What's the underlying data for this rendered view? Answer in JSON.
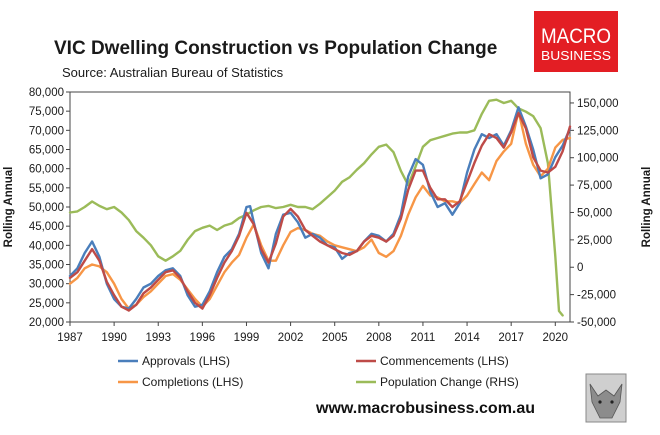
{
  "title": "VIC Dwelling Construction vs Population Change",
  "subtitle": "Source: Australian Bureau of Statistics",
  "logo": {
    "line1": "MACRO",
    "line2": "BUSINESS",
    "color": "#e31e24"
  },
  "website": "www.macrobusiness.com.au",
  "chart_data": {
    "type": "line",
    "title": "VIC Dwelling Construction vs Population Change",
    "ylabel_left": "Rolling Annual",
    "ylabel_right": "Rolling Annual",
    "xlim": [
      1987,
      2021
    ],
    "ylim_left": [
      20000,
      80000
    ],
    "ylim_right": [
      -50000,
      160000
    ],
    "x_ticks": [
      "1987",
      "1990",
      "1993",
      "1996",
      "1999",
      "2002",
      "2005",
      "2008",
      "2011",
      "2014",
      "2017",
      "2020"
    ],
    "y_ticks_left": [
      "20,000",
      "25,000",
      "30,000",
      "35,000",
      "40,000",
      "45,000",
      "50,000",
      "55,000",
      "60,000",
      "65,000",
      "70,000",
      "75,000",
      "80,000"
    ],
    "y_ticks_right": [
      "-50,000",
      "-25,000",
      "0",
      "25,000",
      "50,000",
      "75,000",
      "100,000",
      "125,000",
      "150,000"
    ],
    "legend": "bottom",
    "series": [
      {
        "name": "Approvals (LHS)",
        "axis": "left",
        "color": "#4a7ebb",
        "points": [
          [
            1987,
            32000
          ],
          [
            1987.5,
            34000
          ],
          [
            1988,
            38000
          ],
          [
            1988.5,
            41000
          ],
          [
            1989,
            37000
          ],
          [
            1989.5,
            30000
          ],
          [
            1990,
            26000
          ],
          [
            1990.5,
            24000
          ],
          [
            1991,
            23500
          ],
          [
            1991.5,
            26000
          ],
          [
            1992,
            29000
          ],
          [
            1992.5,
            30000
          ],
          [
            1993,
            32000
          ],
          [
            1993.5,
            33500
          ],
          [
            1994,
            34000
          ],
          [
            1994.5,
            32000
          ],
          [
            1995,
            27000
          ],
          [
            1995.5,
            24000
          ],
          [
            1996,
            24500
          ],
          [
            1996.5,
            28000
          ],
          [
            1997,
            33000
          ],
          [
            1997.5,
            37000
          ],
          [
            1998,
            39000
          ],
          [
            1998.5,
            43000
          ],
          [
            1999,
            50000
          ],
          [
            1999.25,
            50200
          ],
          [
            1999.5,
            46000
          ],
          [
            2000,
            38000
          ],
          [
            2000.5,
            34000
          ],
          [
            2001,
            43000
          ],
          [
            2001.5,
            48000
          ],
          [
            2002,
            48500
          ],
          [
            2002.5,
            46000
          ],
          [
            2003,
            42000
          ],
          [
            2003.5,
            43000
          ],
          [
            2004,
            42000
          ],
          [
            2004.5,
            40000
          ],
          [
            2005,
            39500
          ],
          [
            2005.5,
            36500
          ],
          [
            2006,
            38000
          ],
          [
            2006.5,
            38500
          ],
          [
            2007,
            41000
          ],
          [
            2007.5,
            43000
          ],
          [
            2008,
            42500
          ],
          [
            2008.5,
            41000
          ],
          [
            2009,
            43000
          ],
          [
            2009.5,
            48000
          ],
          [
            2010,
            58000
          ],
          [
            2010.5,
            62500
          ],
          [
            2011,
            61000
          ],
          [
            2011.5,
            54000
          ],
          [
            2012,
            50000
          ],
          [
            2012.5,
            51000
          ],
          [
            2013,
            48000
          ],
          [
            2013.5,
            51000
          ],
          [
            2014,
            59000
          ],
          [
            2014.5,
            65000
          ],
          [
            2015,
            69000
          ],
          [
            2015.5,
            68000
          ],
          [
            2016,
            69000
          ],
          [
            2016.5,
            66000
          ],
          [
            2017,
            70000
          ],
          [
            2017.5,
            76000
          ],
          [
            2018,
            71000
          ],
          [
            2018.5,
            65000
          ],
          [
            2019,
            57500
          ],
          [
            2019.5,
            58500
          ],
          [
            2020,
            63000
          ],
          [
            2020.5,
            66000
          ],
          [
            2021,
            70500
          ]
        ]
      },
      {
        "name": "Commencements (LHS)",
        "axis": "left",
        "color": "#be4b48",
        "points": [
          [
            1987,
            31500
          ],
          [
            1987.5,
            33000
          ],
          [
            1988,
            36000
          ],
          [
            1988.5,
            39000
          ],
          [
            1989,
            36000
          ],
          [
            1989.5,
            30500
          ],
          [
            1990,
            27000
          ],
          [
            1990.5,
            24000
          ],
          [
            1991,
            23000
          ],
          [
            1991.5,
            24500
          ],
          [
            1992,
            27500
          ],
          [
            1992.5,
            29000
          ],
          [
            1993,
            31000
          ],
          [
            1993.5,
            33000
          ],
          [
            1994,
            33500
          ],
          [
            1994.5,
            31500
          ],
          [
            1995,
            28000
          ],
          [
            1995.5,
            25000
          ],
          [
            1996,
            23500
          ],
          [
            1996.5,
            27000
          ],
          [
            1997,
            31500
          ],
          [
            1997.5,
            35500
          ],
          [
            1998,
            38500
          ],
          [
            1998.5,
            42500
          ],
          [
            1999,
            48500
          ],
          [
            1999.5,
            45500
          ],
          [
            2000,
            39000
          ],
          [
            2000.5,
            35500
          ],
          [
            2001,
            40500
          ],
          [
            2001.5,
            47500
          ],
          [
            2002,
            49500
          ],
          [
            2002.5,
            47500
          ],
          [
            2003,
            44000
          ],
          [
            2003.5,
            42500
          ],
          [
            2004,
            41000
          ],
          [
            2004.5,
            40000
          ],
          [
            2005,
            39000
          ],
          [
            2005.5,
            38000
          ],
          [
            2006,
            37500
          ],
          [
            2006.5,
            38500
          ],
          [
            2007,
            41000
          ],
          [
            2007.5,
            42500
          ],
          [
            2008,
            42000
          ],
          [
            2008.5,
            41000
          ],
          [
            2009,
            42500
          ],
          [
            2009.5,
            47000
          ],
          [
            2010,
            54500
          ],
          [
            2010.5,
            59500
          ],
          [
            2011,
            59500
          ],
          [
            2011.5,
            55000
          ],
          [
            2012,
            52000
          ],
          [
            2012.5,
            52000
          ],
          [
            2013,
            50000
          ],
          [
            2013.5,
            51500
          ],
          [
            2014,
            56500
          ],
          [
            2014.5,
            61500
          ],
          [
            2015,
            66000
          ],
          [
            2015.5,
            69000
          ],
          [
            2016,
            68000
          ],
          [
            2016.5,
            65500
          ],
          [
            2017,
            69500
          ],
          [
            2017.5,
            74500
          ],
          [
            2018,
            70500
          ],
          [
            2018.5,
            63000
          ],
          [
            2019,
            59500
          ],
          [
            2019.5,
            59000
          ],
          [
            2020,
            60500
          ],
          [
            2020.5,
            64500
          ],
          [
            2021,
            71000
          ]
        ]
      },
      {
        "name": "Completions (LHS)",
        "axis": "left",
        "color": "#f79646",
        "points": [
          [
            1987,
            30000
          ],
          [
            1987.5,
            31500
          ],
          [
            1988,
            34000
          ],
          [
            1988.5,
            35000
          ],
          [
            1989,
            34500
          ],
          [
            1989.5,
            33000
          ],
          [
            1990,
            30000
          ],
          [
            1990.5,
            26000
          ],
          [
            1991,
            23500
          ],
          [
            1991.5,
            24500
          ],
          [
            1992,
            26500
          ],
          [
            1992.5,
            28000
          ],
          [
            1993,
            30000
          ],
          [
            1993.5,
            32000
          ],
          [
            1994,
            32500
          ],
          [
            1994.5,
            31000
          ],
          [
            1995,
            28500
          ],
          [
            1995.5,
            26000
          ],
          [
            1996,
            24000
          ],
          [
            1996.5,
            26000
          ],
          [
            1997,
            29500
          ],
          [
            1997.5,
            33000
          ],
          [
            1998,
            35500
          ],
          [
            1998.5,
            37500
          ],
          [
            1999,
            42000
          ],
          [
            1999.5,
            45500
          ],
          [
            2000,
            40000
          ],
          [
            2000.5,
            36000
          ],
          [
            2001,
            36000
          ],
          [
            2001.5,
            40000
          ],
          [
            2002,
            43500
          ],
          [
            2002.5,
            44500
          ],
          [
            2003,
            44000
          ],
          [
            2003.5,
            43000
          ],
          [
            2004,
            42500
          ],
          [
            2004.5,
            41000
          ],
          [
            2005,
            40000
          ],
          [
            2005.5,
            39500
          ],
          [
            2006,
            39000
          ],
          [
            2006.5,
            38500
          ],
          [
            2007,
            39500
          ],
          [
            2007.5,
            41500
          ],
          [
            2008,
            38000
          ],
          [
            2008.5,
            37000
          ],
          [
            2009,
            38500
          ],
          [
            2009.5,
            42500
          ],
          [
            2010,
            48000
          ],
          [
            2010.5,
            52500
          ],
          [
            2011,
            55500
          ],
          [
            2011.5,
            53000
          ],
          [
            2012,
            52500
          ],
          [
            2012.5,
            51500
          ],
          [
            2013,
            51500
          ],
          [
            2013.5,
            51000
          ],
          [
            2014,
            53000
          ],
          [
            2014.5,
            56000
          ],
          [
            2015,
            59000
          ],
          [
            2015.5,
            57000
          ],
          [
            2016,
            62000
          ],
          [
            2016.5,
            64500
          ],
          [
            2017,
            66500
          ],
          [
            2017.5,
            75000
          ],
          [
            2018,
            66500
          ],
          [
            2018.5,
            61000
          ],
          [
            2019,
            58000
          ],
          [
            2019.5,
            60000
          ],
          [
            2020,
            65500
          ],
          [
            2020.5,
            67500
          ],
          [
            2021,
            68000
          ]
        ]
      },
      {
        "name": "Population Change (RHS)",
        "axis": "right",
        "color": "#9bbb59",
        "points": [
          [
            1987,
            50000
          ],
          [
            1987.5,
            51000
          ],
          [
            1988,
            55000
          ],
          [
            1988.5,
            60000
          ],
          [
            1989,
            56000
          ],
          [
            1989.5,
            53000
          ],
          [
            1990,
            55000
          ],
          [
            1990.5,
            50000
          ],
          [
            1991,
            43000
          ],
          [
            1991.5,
            33000
          ],
          [
            1992,
            27000
          ],
          [
            1992.5,
            20000
          ],
          [
            1993,
            10000
          ],
          [
            1993.5,
            6000
          ],
          [
            1994,
            10000
          ],
          [
            1994.5,
            15000
          ],
          [
            1995,
            25000
          ],
          [
            1995.5,
            33000
          ],
          [
            1996,
            36000
          ],
          [
            1996.5,
            38000
          ],
          [
            1997,
            34000
          ],
          [
            1997.5,
            38000
          ],
          [
            1998,
            40000
          ],
          [
            1998.5,
            45000
          ],
          [
            1999,
            48000
          ],
          [
            1999.5,
            52000
          ],
          [
            2000,
            55000
          ],
          [
            2000.5,
            56000
          ],
          [
            2001,
            54000
          ],
          [
            2001.5,
            55000
          ],
          [
            2002,
            57000
          ],
          [
            2002.5,
            55000
          ],
          [
            2003,
            55000
          ],
          [
            2003.5,
            53000
          ],
          [
            2004,
            58000
          ],
          [
            2004.5,
            64000
          ],
          [
            2005,
            70000
          ],
          [
            2005.5,
            78000
          ],
          [
            2006,
            82000
          ],
          [
            2006.5,
            89000
          ],
          [
            2007,
            95000
          ],
          [
            2007.5,
            103000
          ],
          [
            2008,
            110000
          ],
          [
            2008.5,
            112000
          ],
          [
            2009,
            105000
          ],
          [
            2009.5,
            88000
          ],
          [
            2010,
            75000
          ],
          [
            2010.5,
            92000
          ],
          [
            2011,
            110000
          ],
          [
            2011.5,
            116000
          ],
          [
            2012,
            118000
          ],
          [
            2012.5,
            120000
          ],
          [
            2013,
            122000
          ],
          [
            2013.5,
            123000
          ],
          [
            2014,
            123000
          ],
          [
            2014.5,
            125000
          ],
          [
            2015,
            140000
          ],
          [
            2015.5,
            152000
          ],
          [
            2016,
            153000
          ],
          [
            2016.5,
            150000
          ],
          [
            2017,
            152000
          ],
          [
            2017.5,
            145000
          ],
          [
            2018,
            142000
          ],
          [
            2018.5,
            138000
          ],
          [
            2019,
            127000
          ],
          [
            2019.5,
            95000
          ],
          [
            2020,
            10000
          ],
          [
            2020.25,
            -40000
          ],
          [
            2020.5,
            -44000
          ]
        ]
      }
    ]
  }
}
